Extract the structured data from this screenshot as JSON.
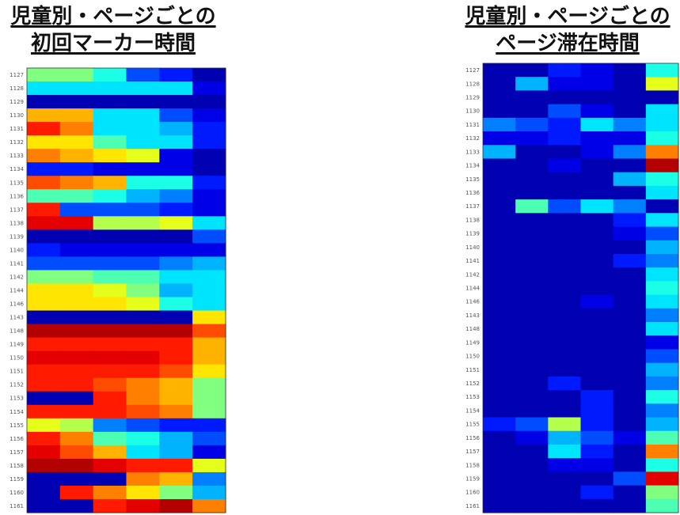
{
  "chart_data": [
    {
      "type": "heatmap",
      "title_lines": [
        "児童別・ページごとの",
        "初回マーカー時間"
      ],
      "categories": [
        "1127",
        "1128",
        "1129",
        "1130",
        "1131",
        "1132",
        "1133",
        "1134",
        "1135",
        "1136",
        "1137",
        "1138",
        "1139",
        "1140",
        "1141",
        "1142",
        "1144",
        "1146",
        "1143",
        "1148",
        "1149",
        "1150",
        "1151",
        "1152",
        "1153",
        "1154",
        "1155",
        "1156",
        "1157",
        "1158",
        "1159",
        "1160",
        "1161"
      ],
      "columns": 6,
      "colormap": "jet",
      "values": [
        [
          0.5,
          0.5,
          0.4,
          0.2,
          0.15,
          0.05
        ],
        [
          0.35,
          0.35,
          0.35,
          0.35,
          0.35,
          0.1
        ],
        [
          0.05,
          0.05,
          0.05,
          0.05,
          0.05,
          0.05
        ],
        [
          0.7,
          0.7,
          0.35,
          0.35,
          0.2,
          0.1
        ],
        [
          0.85,
          0.75,
          0.35,
          0.35,
          0.3,
          0.15
        ],
        [
          0.65,
          0.65,
          0.45,
          0.35,
          0.35,
          0.15
        ],
        [
          0.75,
          0.7,
          0.65,
          0.6,
          0.1,
          0.05
        ],
        [
          0.15,
          0.15,
          0.1,
          0.1,
          0.1,
          0.05
        ],
        [
          0.8,
          0.75,
          0.7,
          0.4,
          0.4,
          0.15
        ],
        [
          0.45,
          0.45,
          0.4,
          0.3,
          0.25,
          0.1
        ],
        [
          0.85,
          0.2,
          0.2,
          0.2,
          0.15,
          0.1
        ],
        [
          0.9,
          0.9,
          0.55,
          0.55,
          0.6,
          0.35
        ],
        [
          0.05,
          0.05,
          0.05,
          0.05,
          0.05,
          0.2
        ],
        [
          0.15,
          0.1,
          0.1,
          0.1,
          0.1,
          0.1
        ],
        [
          0.2,
          0.2,
          0.2,
          0.2,
          0.25,
          0.3
        ],
        [
          0.5,
          0.5,
          0.45,
          0.45,
          0.35,
          0.35
        ],
        [
          0.65,
          0.65,
          0.6,
          0.5,
          0.3,
          0.35
        ],
        [
          0.65,
          0.65,
          0.65,
          0.6,
          0.4,
          0.35
        ],
        [
          0.05,
          0.05,
          0.05,
          0.05,
          0.05,
          0.65
        ],
        [
          0.95,
          0.95,
          0.95,
          0.95,
          0.95,
          0.8
        ],
        [
          0.85,
          0.85,
          0.85,
          0.85,
          0.85,
          0.7
        ],
        [
          0.9,
          0.9,
          0.9,
          0.9,
          0.85,
          0.7
        ],
        [
          0.85,
          0.85,
          0.85,
          0.85,
          0.8,
          0.65
        ],
        [
          0.85,
          0.85,
          0.8,
          0.75,
          0.7,
          0.5
        ],
        [
          0.05,
          0.05,
          0.85,
          0.75,
          0.7,
          0.5
        ],
        [
          0.85,
          0.85,
          0.85,
          0.8,
          0.75,
          0.5
        ],
        [
          0.6,
          0.55,
          0.25,
          0.2,
          0.15,
          0.15
        ],
        [
          0.85,
          0.75,
          0.45,
          0.4,
          0.3,
          0.2
        ],
        [
          0.9,
          0.8,
          0.7,
          0.35,
          0.3,
          0.1
        ],
        [
          0.95,
          0.95,
          0.9,
          0.85,
          0.85,
          0.6
        ],
        [
          0.05,
          0.05,
          0.05,
          0.75,
          0.7,
          0.25
        ],
        [
          0.05,
          0.85,
          0.75,
          0.65,
          0.5,
          0.3
        ],
        [
          0.05,
          0.05,
          0.85,
          0.9,
          0.95,
          0.75
        ]
      ]
    },
    {
      "type": "heatmap",
      "title_lines": [
        "児童別・ページごとの",
        "ページ滞在時間"
      ],
      "categories": [
        "1127",
        "1128",
        "1129",
        "1130",
        "1131",
        "1132",
        "1133",
        "1134",
        "1135",
        "1136",
        "1137",
        "1138",
        "1139",
        "1140",
        "1141",
        "1142",
        "1144",
        "1146",
        "1143",
        "1148",
        "1149",
        "1150",
        "1151",
        "1152",
        "1153",
        "1154",
        "1155",
        "1156",
        "1157",
        "1158",
        "1159",
        "1160",
        "1161"
      ],
      "columns": 6,
      "colormap": "jet",
      "values": [
        [
          0.05,
          0.05,
          0.15,
          0.1,
          0.05,
          0.4
        ],
        [
          0.05,
          0.3,
          0.1,
          0.1,
          0.05,
          0.6
        ],
        [
          0.05,
          0.05,
          0.05,
          0.05,
          0.05,
          0.05
        ],
        [
          0.05,
          0.05,
          0.2,
          0.1,
          0.05,
          0.35
        ],
        [
          0.25,
          0.2,
          0.15,
          0.35,
          0.25,
          0.35
        ],
        [
          0.1,
          0.1,
          0.15,
          0.1,
          0.1,
          0.4
        ],
        [
          0.3,
          0.05,
          0.05,
          0.1,
          0.25,
          0.75
        ],
        [
          0.05,
          0.05,
          0.1,
          0.05,
          0.05,
          0.95
        ],
        [
          0.05,
          0.05,
          0.05,
          0.05,
          0.3,
          0.4
        ],
        [
          0.05,
          0.05,
          0.05,
          0.05,
          0.05,
          0.35
        ],
        [
          0.05,
          0.45,
          0.2,
          0.35,
          0.25,
          0.05
        ],
        [
          0.05,
          0.05,
          0.05,
          0.05,
          0.15,
          0.35
        ],
        [
          0.05,
          0.05,
          0.05,
          0.05,
          0.1,
          0.2
        ],
        [
          0.05,
          0.05,
          0.05,
          0.05,
          0.05,
          0.3
        ],
        [
          0.05,
          0.05,
          0.05,
          0.05,
          0.15,
          0.25
        ],
        [
          0.05,
          0.05,
          0.05,
          0.05,
          0.05,
          0.35
        ],
        [
          0.05,
          0.05,
          0.05,
          0.05,
          0.05,
          0.4
        ],
        [
          0.05,
          0.05,
          0.05,
          0.1,
          0.05,
          0.35
        ],
        [
          0.05,
          0.05,
          0.05,
          0.05,
          0.05,
          0.25
        ],
        [
          0.05,
          0.05,
          0.05,
          0.05,
          0.05,
          0.35
        ],
        [
          0.05,
          0.05,
          0.05,
          0.05,
          0.05,
          0.1
        ],
        [
          0.05,
          0.05,
          0.05,
          0.05,
          0.05,
          0.2
        ],
        [
          0.05,
          0.05,
          0.05,
          0.05,
          0.05,
          0.3
        ],
        [
          0.05,
          0.05,
          0.15,
          0.05,
          0.05,
          0.25
        ],
        [
          0.05,
          0.05,
          0.05,
          0.15,
          0.05,
          0.4
        ],
        [
          0.05,
          0.05,
          0.05,
          0.15,
          0.05,
          0.25
        ],
        [
          0.15,
          0.2,
          0.55,
          0.15,
          0.05,
          0.3
        ],
        [
          0.05,
          0.1,
          0.3,
          0.2,
          0.1,
          0.45
        ],
        [
          0.05,
          0.05,
          0.35,
          0.15,
          0.05,
          0.75
        ],
        [
          0.05,
          0.05,
          0.1,
          0.1,
          0.05,
          0.4
        ],
        [
          0.05,
          0.05,
          0.05,
          0.05,
          0.2,
          0.9
        ],
        [
          0.05,
          0.05,
          0.05,
          0.15,
          0.05,
          0.5
        ],
        [
          0.05,
          0.05,
          0.05,
          0.05,
          0.05,
          0.45
        ]
      ]
    }
  ]
}
